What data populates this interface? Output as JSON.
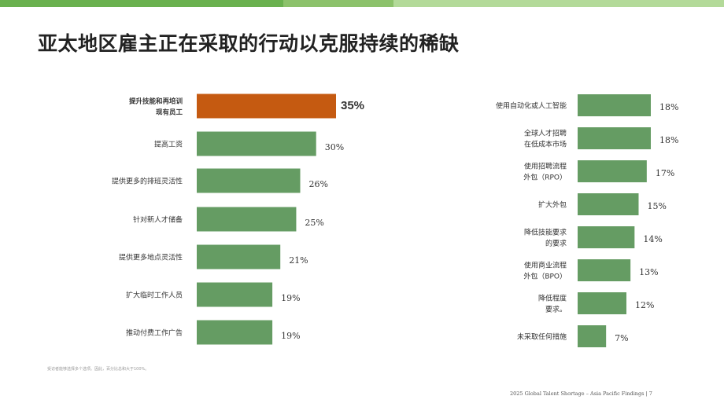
{
  "title": "亚太地区雇主正在采取的行动以克服持续的稀缺",
  "footnote": "受访者能够选择多个选项。因此，百分比总和大于100%。",
  "footer": "2025 Global Talent Shortage – Asia Pacific Findings | 7",
  "colors": {
    "highlight": "#c55a11",
    "bar": "#659c63",
    "topbar": "#6ab14f"
  },
  "chart_data": [
    {
      "type": "bar",
      "orientation": "horizontal",
      "value_format": "percent",
      "xlim": [
        0,
        35
      ],
      "highlight_index": 0,
      "categories": [
        [
          "提升技能和再培训",
          "现有员工"
        ],
        [
          "提高工资"
        ],
        [
          "提供更多的排班灵活性"
        ],
        [
          "针对新人才储备"
        ],
        [
          "提供更多地点灵活性"
        ],
        [
          "扩大临时工作人员"
        ],
        [
          "推动付费工作广告"
        ]
      ],
      "values": [
        35,
        30,
        26,
        25,
        21,
        19,
        19
      ],
      "labels": [
        "35%",
        "30%",
        "26%",
        "25%",
        "21%",
        "19%",
        "19%"
      ]
    },
    {
      "type": "bar",
      "orientation": "horizontal",
      "value_format": "percent",
      "xlim": [
        0,
        18
      ],
      "categories": [
        [
          "使用自动化或人工智能"
        ],
        [
          "全球人才招聘",
          "在低成本市场"
        ],
        [
          "使用招聘流程",
          "外包（RPO）"
        ],
        [
          "扩大外包"
        ],
        [
          "降低技能要求",
          "的要求"
        ],
        [
          "使用商业流程",
          "外包（BPO）"
        ],
        [
          "降低程度",
          "要求。"
        ],
        [
          "未采取任何措施"
        ]
      ],
      "values": [
        18,
        18,
        17,
        15,
        14,
        13,
        12,
        7
      ],
      "labels": [
        "18%",
        "18%",
        "17%",
        "15%",
        "14%",
        "13%",
        "12%",
        "7%"
      ]
    }
  ]
}
